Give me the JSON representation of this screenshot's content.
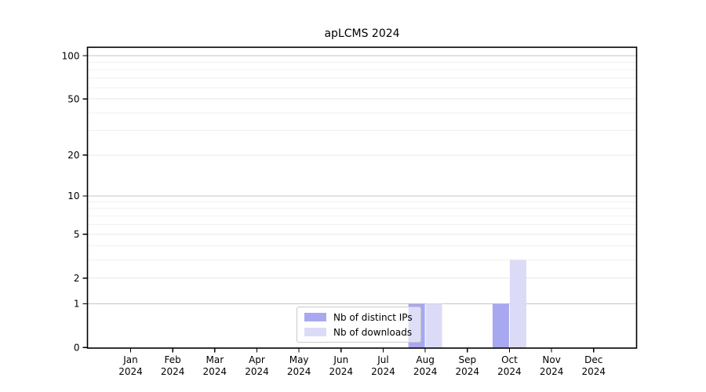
{
  "chart_data": {
    "type": "bar",
    "title": "apLCMS 2024",
    "categories": [
      "Jan",
      "Feb",
      "Mar",
      "Apr",
      "May",
      "Jun",
      "Jul",
      "Aug",
      "Sep",
      "Oct",
      "Nov",
      "Dec"
    ],
    "year_label": "2024",
    "series": [
      {
        "name": "Nb of distinct IPs",
        "color": "#a8a8f0",
        "values": [
          0,
          0,
          0,
          0,
          0,
          0,
          0,
          1,
          0,
          1,
          0,
          0
        ]
      },
      {
        "name": "Nb of downloads",
        "color": "#dbdbf8",
        "values": [
          0,
          0,
          0,
          0,
          0,
          0,
          0,
          1,
          0,
          3,
          0,
          0
        ]
      }
    ],
    "y_ticks": [
      0,
      1,
      2,
      5,
      10,
      20,
      50,
      100
    ],
    "y_scale": "log10(1+x)",
    "ylim": [
      0,
      115
    ],
    "xlabel": "",
    "ylabel": "",
    "grid": true,
    "legend_position": "inside-bottom-center"
  }
}
